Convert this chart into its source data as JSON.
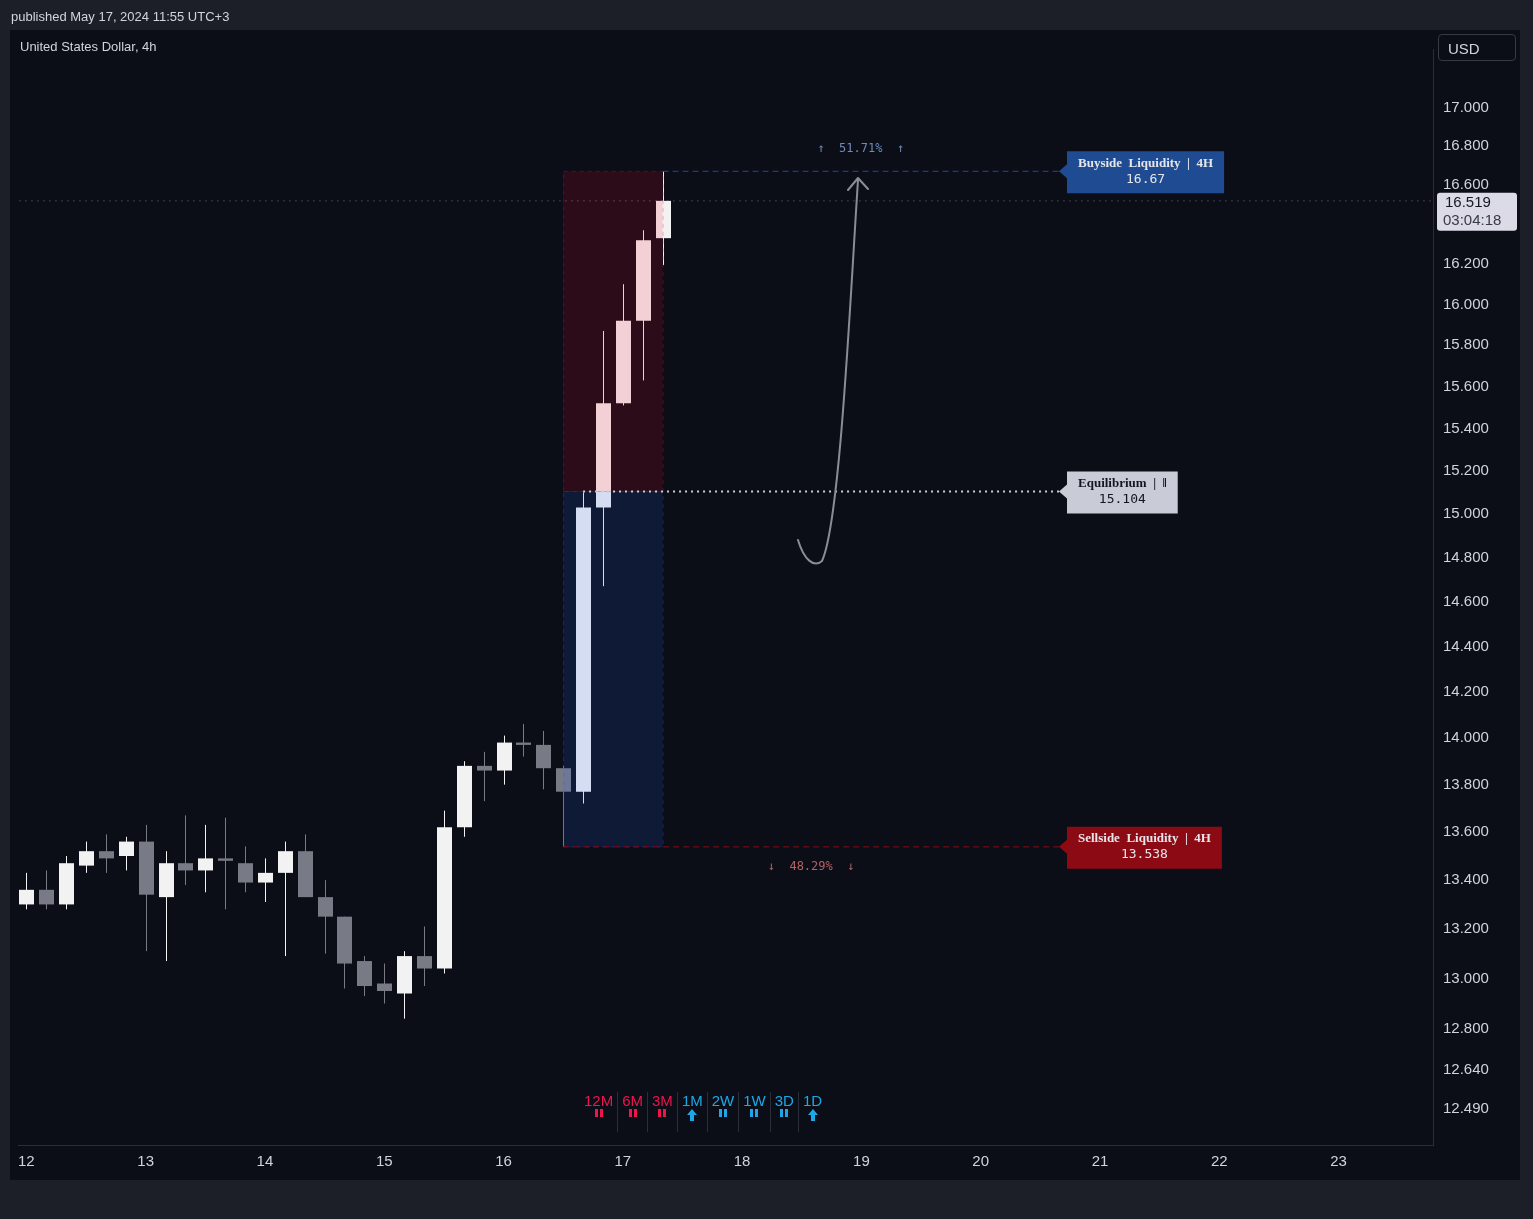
{
  "chart_data": {
    "type": "candlestick",
    "title": "United States Dollar, 4h",
    "subtitle": "published May 17, 2024 11:55 UTC+3",
    "ylabel": "USD",
    "log": true,
    "x": [
      "2024-05-12T00:00",
      "2024-05-12T04:00",
      "2024-05-12T08:00",
      "2024-05-12T12:00",
      "2024-05-12T16:00",
      "2024-05-12T20:00",
      "2024-05-13T00:00",
      "2024-05-13T04:00",
      "2024-05-13T08:00",
      "2024-05-13T12:00",
      "2024-05-13T16:00",
      "2024-05-13T20:00",
      "2024-05-14T00:00",
      "2024-05-14T04:00",
      "2024-05-14T08:00",
      "2024-05-14T12:00",
      "2024-05-14T16:00",
      "2024-05-14T20:00",
      "2024-05-15T00:00",
      "2024-05-15T04:00",
      "2024-05-15T08:00",
      "2024-05-15T12:00",
      "2024-05-15T16:00",
      "2024-05-15T20:00",
      "2024-05-16T00:00",
      "2024-05-16T04:00",
      "2024-05-16T08:00",
      "2024-05-16T12:00",
      "2024-05-16T16:00",
      "2024-05-16T20:00",
      "2024-05-17T00:00",
      "2024-05-17T04:00",
      "2024-05-17T08:00"
    ],
    "ohlc": [
      [
        13.3,
        13.43,
        13.28,
        13.36
      ],
      [
        13.36,
        13.44,
        13.28,
        13.3
      ],
      [
        13.3,
        13.5,
        13.28,
        13.47
      ],
      [
        13.46,
        13.56,
        13.43,
        13.52
      ],
      [
        13.52,
        13.59,
        13.43,
        13.49
      ],
      [
        13.5,
        13.58,
        13.44,
        13.56
      ],
      [
        13.56,
        13.63,
        13.11,
        13.34
      ],
      [
        13.33,
        13.52,
        13.07,
        13.47
      ],
      [
        13.47,
        13.67,
        13.38,
        13.44
      ],
      [
        13.44,
        13.63,
        13.35,
        13.49
      ],
      [
        13.49,
        13.66,
        13.28,
        13.48
      ],
      [
        13.47,
        13.54,
        13.35,
        13.39
      ],
      [
        13.39,
        13.49,
        13.31,
        13.43
      ],
      [
        13.43,
        13.56,
        13.09,
        13.52
      ],
      [
        13.52,
        13.59,
        13.33,
        13.33
      ],
      [
        13.33,
        13.4,
        13.1,
        13.25
      ],
      [
        13.25,
        13.25,
        12.96,
        13.06
      ],
      [
        13.07,
        13.09,
        12.93,
        12.97
      ],
      [
        12.98,
        13.06,
        12.9,
        12.95
      ],
      [
        12.94,
        13.11,
        12.84,
        13.09
      ],
      [
        13.09,
        13.21,
        12.97,
        13.04
      ],
      [
        13.04,
        13.69,
        13.02,
        13.62
      ],
      [
        13.62,
        13.9,
        13.58,
        13.88
      ],
      [
        13.88,
        13.94,
        13.73,
        13.86
      ],
      [
        13.86,
        14.01,
        13.8,
        13.98
      ],
      [
        13.98,
        14.06,
        13.92,
        13.97
      ],
      [
        13.97,
        14.03,
        13.78,
        13.87
      ],
      [
        13.87,
        13.88,
        13.538,
        13.77
      ],
      [
        13.77,
        15.1,
        13.72,
        15.03
      ],
      [
        15.03,
        15.87,
        14.67,
        15.52
      ],
      [
        15.52,
        16.1,
        15.51,
        15.92
      ],
      [
        15.92,
        16.37,
        15.63,
        16.32
      ],
      [
        16.33,
        16.67,
        16.195,
        16.519
      ]
    ],
    "colors": [
      "#f2f2f2",
      "#787b86",
      "#f2f2f2",
      "#f2f2f2",
      "#787b86",
      "#f2f2f2",
      "#787b86",
      "#f2f2f2",
      "#787b86",
      "#f2f2f2",
      "#787b86",
      "#787b86",
      "#f2f2f2",
      "#f2f2f2",
      "#787b86",
      "#787b86",
      "#787b86",
      "#787b86",
      "#787b86",
      "#f2f2f2",
      "#787b86",
      "#f2f2f2",
      "#f2f2f2",
      "#787b86",
      "#f2f2f2",
      "#787b86",
      "#787b86",
      "#787b86",
      "#f2f2f2",
      "#f2f2f2",
      "#f2f2f2",
      "#f2f2f2",
      "#f2f2f2"
    ],
    "xlim": [
      "2024-05-11T22:30",
      "2024-05-23T19:00"
    ],
    "xticks": [
      {
        "value": "2024-05-12",
        "label": "12"
      },
      {
        "value": "2024-05-13",
        "label": "13"
      },
      {
        "value": "2024-05-14",
        "label": "14"
      },
      {
        "value": "2024-05-15",
        "label": "15"
      },
      {
        "value": "2024-05-16",
        "label": "16"
      },
      {
        "value": "2024-05-17",
        "label": "17"
      },
      {
        "value": "2024-05-18",
        "label": "18"
      },
      {
        "value": "2024-05-19",
        "label": "19"
      },
      {
        "value": "2024-05-20",
        "label": "20"
      },
      {
        "value": "2024-05-21",
        "label": "21"
      },
      {
        "value": "2024-05-22",
        "label": "22"
      },
      {
        "value": "2024-05-23",
        "label": "23"
      }
    ],
    "ylim": [
      12.35,
      17.31
    ],
    "yticks": [
      {
        "value": 12.49,
        "label": "12.490"
      },
      {
        "value": 12.64,
        "label": "12.640"
      },
      {
        "value": 12.8,
        "label": "12.800"
      },
      {
        "value": 13,
        "label": "13.000"
      },
      {
        "value": 13.2,
        "label": "13.200"
      },
      {
        "value": 13.4,
        "label": "13.400"
      },
      {
        "value": 13.6,
        "label": "13.600"
      },
      {
        "value": 13.8,
        "label": "13.800"
      },
      {
        "value": 14,
        "label": "14.000"
      },
      {
        "value": 14.2,
        "label": "14.200"
      },
      {
        "value": 14.4,
        "label": "14.400"
      },
      {
        "value": 14.6,
        "label": "14.600"
      },
      {
        "value": 14.8,
        "label": "14.800"
      },
      {
        "value": 15,
        "label": "15.000"
      },
      {
        "value": 15.2,
        "label": "15.200"
      },
      {
        "value": 15.4,
        "label": "15.400"
      },
      {
        "value": 15.6,
        "label": "15.600"
      },
      {
        "value": 15.8,
        "label": "15.800"
      },
      {
        "value": 16,
        "label": "16.000"
      },
      {
        "value": 16.2,
        "label": "16.200"
      },
      {
        "value": 16.6,
        "label": "16.600"
      },
      {
        "value": 16.8,
        "label": "16.800"
      },
      {
        "value": 17,
        "label": "17.000"
      }
    ],
    "bands": [
      {
        "axis": "y",
        "from": 15.104,
        "to": 16.67,
        "color": "#ff0030"
      },
      {
        "axis": "y",
        "from": 13.538,
        "to": 15.104,
        "color": "#2962ff"
      }
    ],
    "ref_lines": [
      {
        "axis": "y",
        "value": 16.67,
        "label": "Buyside  Liquidity  |  4H\n16.67",
        "color": "#1e4b91",
        "line_style": "dashed"
      },
      {
        "axis": "y",
        "value": 15.104,
        "label": "Equilibrium  |  ‖\n15.104",
        "color": "#c9ccd6",
        "line_style": "dotted"
      },
      {
        "axis": "y",
        "value": 13.538,
        "label": "Sellside  Liquidity  |  4H\n13.538",
        "color": "#8c0a14",
        "line_style": "dashed"
      },
      {
        "axis": "y",
        "value": 16.519,
        "label": "16.519\n03:04:18",
        "color": "#dcdae6",
        "line_style": "dotted"
      }
    ],
    "annotations": [
      "↑  51.71%  ↑",
      "↓  48.29%  ↓",
      "12M",
      "6M",
      "3M",
      "1M",
      "2W",
      "1W",
      "3D",
      "1D"
    ]
  }
}
